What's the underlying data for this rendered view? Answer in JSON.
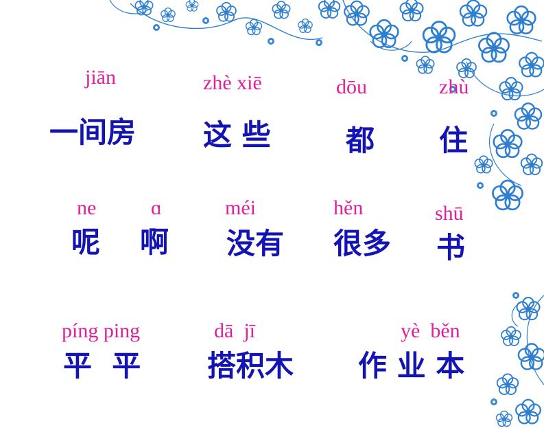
{
  "palette": {
    "pinyin_color": "#e0209a",
    "hanzi_color": "#1414b4",
    "decor_color": "#2f7fd0"
  },
  "decor": {
    "corner_flourish": "blue-floral-pattern"
  },
  "rows": [
    {
      "items": [
        {
          "pinyin": "jiān",
          "hanzi": "一间房"
        },
        {
          "pinyin": "zhè xiē",
          "hanzi": "这 些"
        },
        {
          "pinyin": "dōu",
          "hanzi": "都"
        },
        {
          "pinyin": "zhù",
          "hanzi": "住"
        }
      ]
    },
    {
      "items": [
        {
          "pinyin": "ne",
          "hanzi": "呢"
        },
        {
          "pinyin": "ɑ",
          "hanzi": "啊"
        },
        {
          "pinyin": "méi",
          "hanzi": "没有"
        },
        {
          "pinyin": "hěn",
          "hanzi": "很多"
        },
        {
          "pinyin": "shū",
          "hanzi": "书"
        }
      ]
    },
    {
      "items": [
        {
          "pinyin": "píng ping",
          "hanzi": "平  平"
        },
        {
          "pinyin": "dā  jī",
          "hanzi": "搭积木"
        },
        {
          "pinyin": "yè  běn",
          "hanzi": "作 业 本"
        }
      ]
    }
  ]
}
